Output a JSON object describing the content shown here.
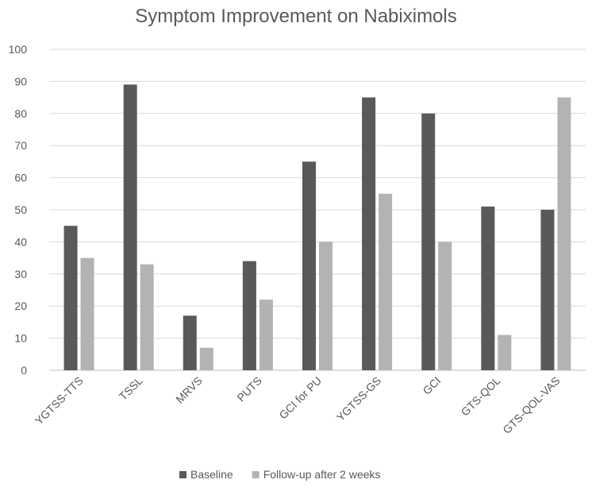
{
  "chart_data": {
    "type": "bar",
    "title": "Symptom Improvement on Nabiximols",
    "xlabel": "",
    "ylabel": "",
    "ylim": [
      0,
      100
    ],
    "yticks": [
      0,
      10,
      20,
      30,
      40,
      50,
      60,
      70,
      80,
      90,
      100
    ],
    "grid": true,
    "legend_position": "bottom",
    "categories": [
      "YGTSS-TTS",
      "TSSL",
      "MRVS",
      "PUTS",
      "GCI for PU",
      "YGTSS-GS",
      "GCI",
      "GTS-QOL",
      "GTS-QOL-VAS"
    ],
    "series": [
      {
        "name": "Baseline",
        "color": "#595959",
        "values": [
          45,
          89,
          17,
          34,
          65,
          85,
          80,
          51,
          50
        ]
      },
      {
        "name": "Follow-up after 2 weeks",
        "color": "#b3b3b3",
        "values": [
          35,
          33,
          7,
          22,
          40,
          55,
          40,
          11,
          85
        ]
      }
    ]
  }
}
